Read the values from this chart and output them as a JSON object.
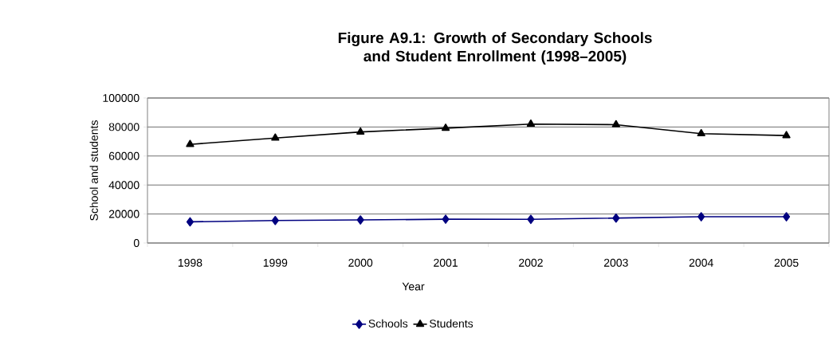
{
  "chart_data": {
    "type": "line",
    "title": "Figure A9.1: Growth of Secondary Schools and Student Enrollment (1998–2005)",
    "xlabel": "Year",
    "ylabel": "School and students",
    "categories": [
      "1998",
      "1999",
      "2000",
      "2001",
      "2002",
      "2003",
      "2004",
      "2005"
    ],
    "series": [
      {
        "name": "Schools",
        "color": "#000080",
        "marker": "diamond",
        "values": [
          14600,
          15500,
          15900,
          16400,
          16300,
          17200,
          18100,
          18100
        ]
      },
      {
        "name": "Students",
        "color": "#000000",
        "marker": "triangle",
        "values": [
          68000,
          72400,
          76600,
          79200,
          82000,
          81600,
          75400,
          74100
        ]
      }
    ],
    "ylim": [
      0,
      100000
    ],
    "yticks": [
      0,
      20000,
      40000,
      60000,
      80000,
      100000
    ],
    "grid": "y",
    "legend": "bottom",
    "line_style": "solid"
  }
}
